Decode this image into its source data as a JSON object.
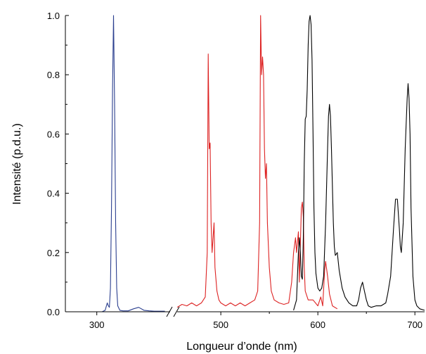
{
  "chart_data": {
    "type": "line",
    "xlabel": "Longueur d’onde (nm)",
    "ylabel": "Intensité (p.d.u.)",
    "ylim": [
      0,
      1.0
    ],
    "x_ticks": [
      "300",
      "500",
      "600",
      "700"
    ],
    "y_ticks": [
      "0.0",
      "0.2",
      "0.4",
      "0.6",
      "0.8",
      "1.0"
    ],
    "x_axis_break": true,
    "grid": false,
    "legend": "none",
    "series": [
      {
        "color": "#2b3f8f",
        "x": [
          270,
          305,
          308,
          310,
          311,
          312,
          313,
          314,
          315,
          316,
          317,
          318,
          319,
          320,
          322,
          325,
          330,
          335,
          340,
          345,
          350,
          355,
          360,
          365
        ],
        "y": [
          0,
          0,
          0.005,
          0.03,
          0.02,
          0.015,
          0.08,
          0.35,
          0.75,
          1.0,
          0.7,
          0.3,
          0.08,
          0.02,
          0.005,
          0.003,
          0.003,
          0.01,
          0.015,
          0.005,
          0.003,
          0.002,
          0.002,
          0.002
        ]
      },
      {
        "color": "#dd2222",
        "x": [
          455,
          460,
          465,
          470,
          475,
          480,
          484,
          486,
          487,
          488,
          489,
          490,
          491,
          492,
          493,
          494,
          496,
          498,
          500,
          505,
          510,
          515,
          520,
          525,
          530,
          535,
          538,
          540,
          541,
          542,
          543,
          544,
          545,
          546,
          547,
          548,
          550,
          552,
          555,
          560,
          565,
          570,
          573,
          575,
          577,
          578,
          580,
          581,
          582,
          583,
          584,
          585,
          586,
          587,
          590,
          595,
          600,
          603,
          605,
          607,
          608,
          610,
          612,
          615,
          620
        ],
        "y": [
          0.015,
          0.025,
          0.02,
          0.03,
          0.02,
          0.03,
          0.05,
          0.2,
          0.87,
          0.55,
          0.57,
          0.3,
          0.2,
          0.25,
          0.3,
          0.15,
          0.07,
          0.04,
          0.03,
          0.02,
          0.03,
          0.02,
          0.03,
          0.02,
          0.03,
          0.04,
          0.07,
          0.3,
          1.0,
          0.8,
          0.86,
          0.8,
          0.55,
          0.45,
          0.5,
          0.3,
          0.15,
          0.07,
          0.04,
          0.03,
          0.025,
          0.03,
          0.1,
          0.2,
          0.25,
          0.2,
          0.27,
          0.1,
          0.23,
          0.35,
          0.37,
          0.32,
          0.15,
          0.07,
          0.04,
          0.04,
          0.02,
          0.05,
          0.02,
          0.14,
          0.17,
          0.12,
          0.06,
          0.02,
          0.01
        ]
      },
      {
        "color": "#000000",
        "x": [
          575,
          578,
          580,
          581,
          582,
          583,
          584,
          585,
          586,
          587,
          588,
          589,
          590,
          591,
          592,
          593,
          594,
          595,
          596,
          597,
          598,
          600,
          602,
          604,
          606,
          608,
          610,
          611,
          612,
          613,
          614,
          615,
          616,
          617,
          618,
          620,
          622,
          625,
          628,
          632,
          636,
          640,
          642,
          644,
          646,
          648,
          650,
          652,
          655,
          660,
          665,
          670,
          672,
          675,
          678,
          680,
          682,
          683,
          684,
          685,
          686,
          688,
          690,
          692,
          693,
          694,
          695,
          696,
          698,
          700,
          702,
          705,
          710
        ],
        "y": [
          0.005,
          0.04,
          0.2,
          0.25,
          0.2,
          0.12,
          0.11,
          0.25,
          0.5,
          0.65,
          0.66,
          0.75,
          0.9,
          0.98,
          1.0,
          0.97,
          0.85,
          0.6,
          0.35,
          0.2,
          0.13,
          0.08,
          0.07,
          0.08,
          0.12,
          0.3,
          0.55,
          0.66,
          0.7,
          0.66,
          0.55,
          0.42,
          0.3,
          0.22,
          0.19,
          0.2,
          0.14,
          0.08,
          0.05,
          0.03,
          0.02,
          0.02,
          0.04,
          0.08,
          0.1,
          0.07,
          0.04,
          0.02,
          0.015,
          0.02,
          0.02,
          0.03,
          0.06,
          0.12,
          0.28,
          0.38,
          0.38,
          0.33,
          0.28,
          0.22,
          0.2,
          0.3,
          0.55,
          0.72,
          0.77,
          0.72,
          0.6,
          0.35,
          0.12,
          0.04,
          0.02,
          0.01,
          0.005
        ]
      }
    ]
  }
}
